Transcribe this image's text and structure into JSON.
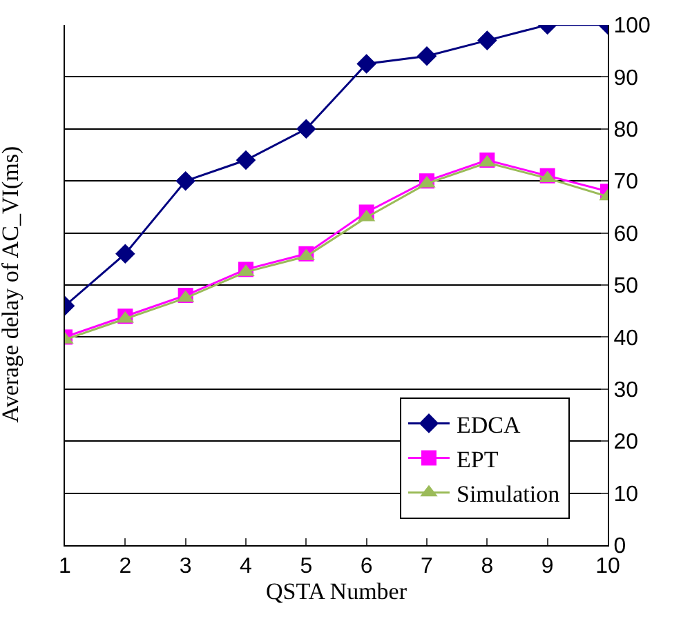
{
  "chart_data": {
    "type": "line",
    "xlabel": "QSTA Number",
    "ylabel": "Average delay of AC_VI(ms)",
    "x": [
      1,
      2,
      3,
      4,
      5,
      6,
      7,
      8,
      9,
      10
    ],
    "xlim": [
      1,
      10
    ],
    "xticks": [
      1,
      2,
      3,
      4,
      5,
      6,
      7,
      8,
      9,
      10
    ],
    "ylim": [
      0,
      100
    ],
    "yticks": [
      0,
      10,
      20,
      30,
      40,
      50,
      60,
      70,
      80,
      90,
      100
    ],
    "grid": "y",
    "legend": "bottom right",
    "series": [
      {
        "name": "EDCA",
        "color": "#000080",
        "marker": "diamond",
        "values": [
          46,
          56,
          70,
          74,
          80,
          92.5,
          94,
          97,
          100,
          100
        ]
      },
      {
        "name": "EPT",
        "color": "#ff00ff",
        "marker": "square",
        "values": [
          40,
          44,
          48,
          53,
          56,
          64,
          70,
          74,
          71,
          68
        ]
      },
      {
        "name": "Simulation",
        "color": "#9bbb59",
        "marker": "triangle",
        "values": [
          39.5,
          43.5,
          47.5,
          52.5,
          55.5,
          63,
          69.5,
          73.5,
          70.5,
          67
        ]
      }
    ]
  }
}
